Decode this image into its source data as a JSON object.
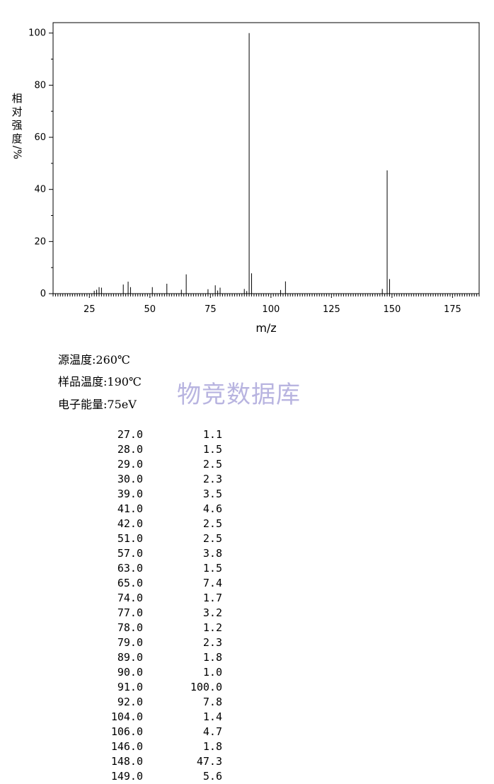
{
  "chart_data": {
    "type": "bar",
    "xlabel": "m/z",
    "ylabel": "相对强度/%",
    "xlim": [
      10,
      186
    ],
    "ylim": [
      0,
      104
    ],
    "x_ticks": [
      25,
      50,
      75,
      100,
      125,
      150,
      175
    ],
    "y_ticks": [
      0,
      20,
      40,
      60,
      80,
      100
    ],
    "grid": false,
    "peaks": [
      {
        "mz": 27.0,
        "intensity": 1.1
      },
      {
        "mz": 28.0,
        "intensity": 1.5
      },
      {
        "mz": 29.0,
        "intensity": 2.5
      },
      {
        "mz": 30.0,
        "intensity": 2.3
      },
      {
        "mz": 39.0,
        "intensity": 3.5
      },
      {
        "mz": 41.0,
        "intensity": 4.6
      },
      {
        "mz": 42.0,
        "intensity": 2.5
      },
      {
        "mz": 51.0,
        "intensity": 2.5
      },
      {
        "mz": 57.0,
        "intensity": 3.8
      },
      {
        "mz": 63.0,
        "intensity": 1.5
      },
      {
        "mz": 65.0,
        "intensity": 7.4
      },
      {
        "mz": 74.0,
        "intensity": 1.7
      },
      {
        "mz": 77.0,
        "intensity": 3.2
      },
      {
        "mz": 78.0,
        "intensity": 1.2
      },
      {
        "mz": 79.0,
        "intensity": 2.3
      },
      {
        "mz": 89.0,
        "intensity": 1.8
      },
      {
        "mz": 90.0,
        "intensity": 1.0
      },
      {
        "mz": 91.0,
        "intensity": 100.0
      },
      {
        "mz": 92.0,
        "intensity": 7.8
      },
      {
        "mz": 104.0,
        "intensity": 1.4
      },
      {
        "mz": 106.0,
        "intensity": 4.7
      },
      {
        "mz": 146.0,
        "intensity": 1.8
      },
      {
        "mz": 148.0,
        "intensity": 47.3
      },
      {
        "mz": 149.0,
        "intensity": 5.6
      }
    ]
  },
  "conditions": {
    "source_temp": "源温度:260℃",
    "sample_temp": "样品温度:190℃",
    "electron_energy": "电子能量:75eV"
  },
  "watermark": "物竞数据库",
  "ylabel_chars": [
    "相",
    "对",
    "强",
    "度",
    "/%"
  ],
  "peak_table": [
    [
      "27.0",
      "1.1"
    ],
    [
      "28.0",
      "1.5"
    ],
    [
      "29.0",
      "2.5"
    ],
    [
      "30.0",
      "2.3"
    ],
    [
      "39.0",
      "3.5"
    ],
    [
      "41.0",
      "4.6"
    ],
    [
      "42.0",
      "2.5"
    ],
    [
      "51.0",
      "2.5"
    ],
    [
      "57.0",
      "3.8"
    ],
    [
      "63.0",
      "1.5"
    ],
    [
      "65.0",
      "7.4"
    ],
    [
      "74.0",
      "1.7"
    ],
    [
      "77.0",
      "3.2"
    ],
    [
      "78.0",
      "1.2"
    ],
    [
      "79.0",
      "2.3"
    ],
    [
      "89.0",
      "1.8"
    ],
    [
      "90.0",
      "1.0"
    ],
    [
      "91.0",
      "100.0"
    ],
    [
      "92.0",
      "7.8"
    ],
    [
      "104.0",
      "1.4"
    ],
    [
      "106.0",
      "4.7"
    ],
    [
      "146.0",
      "1.8"
    ],
    [
      "148.0",
      "47.3"
    ],
    [
      "149.0",
      "5.6"
    ]
  ]
}
